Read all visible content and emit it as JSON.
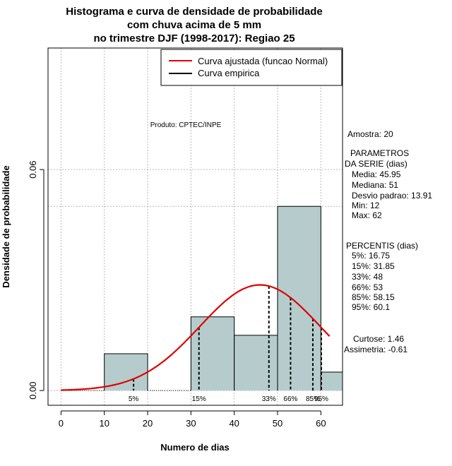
{
  "chart_data": {
    "type": "bar",
    "title_lines": [
      "Histograma e curva de densidade de probabilidade",
      "com chuva acima de 5 mm",
      "no trimestre DJF (1998-2017): Regiao 25"
    ],
    "xlabel": "Numero de dias",
    "ylabel": "Densidade de probabilidade",
    "xlim": [
      -3,
      65
    ],
    "ylim": [
      -0.004,
      0.093
    ],
    "x_ticks": [
      0,
      10,
      20,
      30,
      40,
      50,
      60
    ],
    "y_ticks": [
      0.0,
      0.06
    ],
    "y_tick_labels": [
      "0.00",
      "0.06"
    ],
    "grid": true,
    "bins": [
      {
        "x0": 10,
        "x1": 20,
        "density": 0.01
      },
      {
        "x0": 20,
        "x1": 30,
        "density": 0.0
      },
      {
        "x0": 30,
        "x1": 40,
        "density": 0.02
      },
      {
        "x0": 40,
        "x1": 50,
        "density": 0.015
      },
      {
        "x0": 50,
        "x1": 60,
        "density": 0.05
      },
      {
        "x0": 60,
        "x1": 70,
        "density": 0.005
      }
    ],
    "bar_color": "#b6cccc",
    "reference_line_y": 0.05,
    "series": [
      {
        "name": "Curva ajustada (funcao Normal)",
        "color": "#e00000",
        "mean": 45.95,
        "sd": 13.91,
        "x_range": [
          0,
          62
        ]
      },
      {
        "name": "Curva empirica",
        "color": "#000000"
      }
    ],
    "legend_position": "top-right",
    "percentile_markers": [
      {
        "label": "5%",
        "x": 16.75
      },
      {
        "label": "15%",
        "x": 31.85
      },
      {
        "label": "33%",
        "x": 48
      },
      {
        "label": "66%",
        "x": 53
      },
      {
        "label": "85%",
        "x": 58.15
      },
      {
        "label": "95%",
        "x": 60.1
      }
    ],
    "annotation": "Produto: CPTEC/INPE"
  },
  "side_panel": {
    "sample": "Amostra: 20",
    "params_header_1": "PARAMETROS",
    "params_header_2": "DA SERIE (dias)",
    "media": "Media: 45.95",
    "mediana": "Mediana: 51",
    "desvio": "Desvio padrao: 13.91",
    "min": "Min: 12",
    "max": "Max: 62",
    "percentis_header": "PERCENTIS (dias)",
    "p5": "5%: 16.75",
    "p15": "15%: 31.85",
    "p33": "33%: 48",
    "p66": "66%: 53",
    "p85": "85%: 58.15",
    "p95": "95%: 60.1",
    "curtose": "Curtose: 1.46",
    "assimetria": "Assimetria: -0.61"
  }
}
